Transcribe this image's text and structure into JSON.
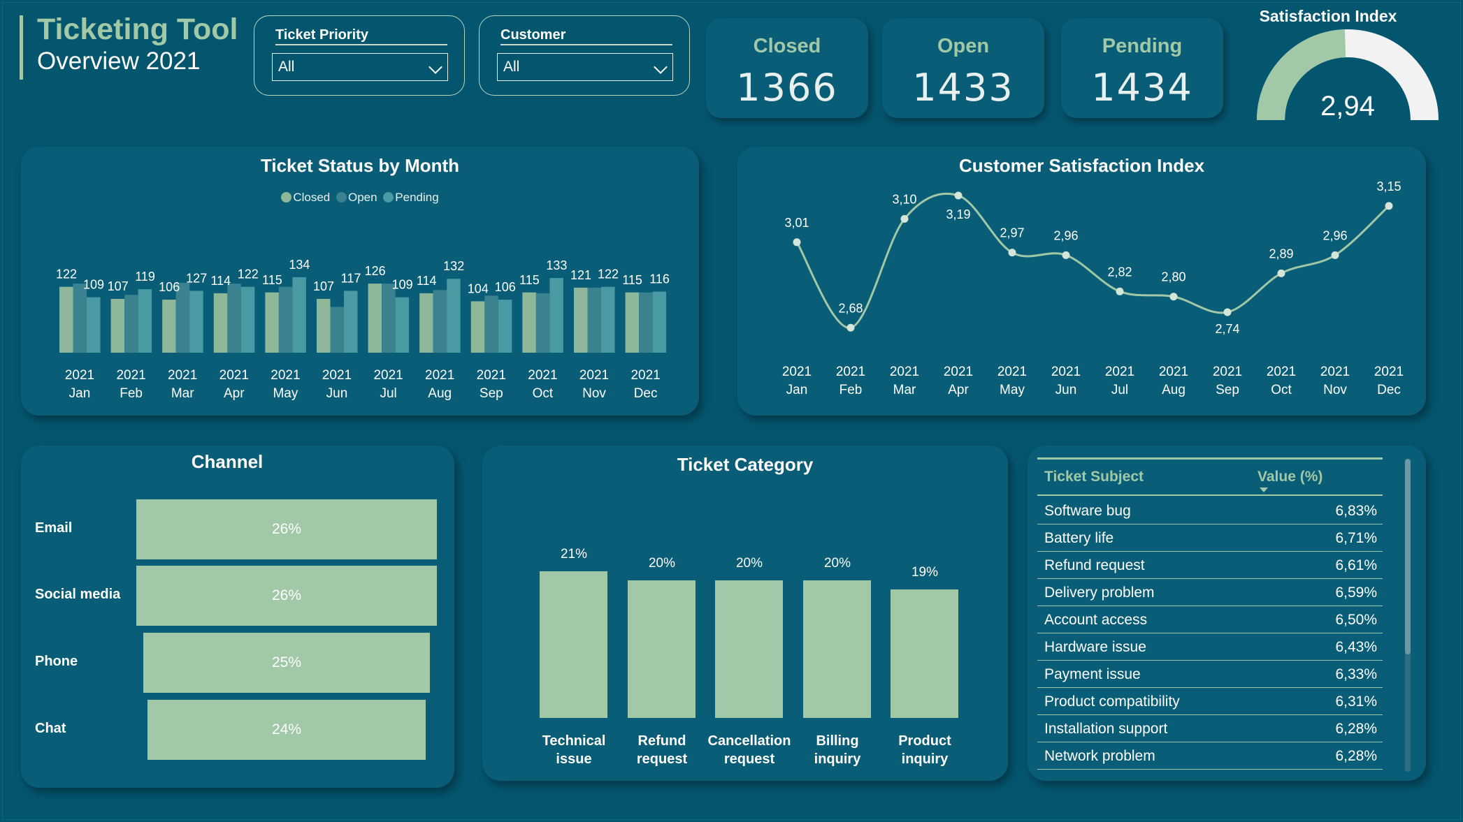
{
  "header": {
    "title": "Ticketing Tool",
    "subtitle": "Overview 2021"
  },
  "filters": {
    "priority": {
      "label": "Ticket Priority",
      "value": "All"
    },
    "customer": {
      "label": "Customer",
      "value": "All"
    }
  },
  "kpis": {
    "closed": {
      "label": "Closed",
      "value": "1366"
    },
    "open": {
      "label": "Open",
      "value": "1433"
    },
    "pending": {
      "label": "Pending",
      "value": "1434"
    }
  },
  "gauge": {
    "title": "Satisfaction Index",
    "value": "2,94",
    "fraction": 0.49
  },
  "colors": {
    "closed": "#8fb89b",
    "open": "#3a8290",
    "pending": "#4a9aa4",
    "accent": "#a1c9a7",
    "background": "#04566f"
  },
  "chart_data": [
    {
      "type": "bar",
      "title": "Ticket Status by Month",
      "categories": [
        "2021 Jan",
        "2021 Feb",
        "2021 Mar",
        "2021 Apr",
        "2021 May",
        "2021 Jun",
        "2021 Jul",
        "2021 Aug",
        "2021 Sep",
        "2021 Oct",
        "2021 Nov",
        "2021 Dec"
      ],
      "category_lines": [
        [
          "2021",
          "Jan"
        ],
        [
          "2021",
          "Feb"
        ],
        [
          "2021",
          "Mar"
        ],
        [
          "2021",
          "Apr"
        ],
        [
          "2021",
          "May"
        ],
        [
          "2021",
          "Jun"
        ],
        [
          "2021",
          "Jul"
        ],
        [
          "2021",
          "Aug"
        ],
        [
          "2021",
          "Sep"
        ],
        [
          "2021",
          "Oct"
        ],
        [
          "2021",
          "Nov"
        ],
        [
          "2021",
          "Dec"
        ]
      ],
      "legend": [
        "Closed",
        "Open",
        "Pending"
      ],
      "legend_position": "top",
      "series": [
        {
          "name": "Closed",
          "values": [
            122,
            107,
            106,
            114,
            115,
            107,
            126,
            114,
            104,
            115,
            121,
            115
          ]
        },
        {
          "name": "Open",
          "values": [
            null,
            null,
            127,
            null,
            null,
            null,
            null,
            null,
            null,
            null,
            null,
            null
          ]
        },
        {
          "name": "Pending",
          "values": [
            null,
            119,
            null,
            122,
            134,
            117,
            109,
            132,
            106,
            133,
            122,
            116
          ]
        }
      ],
      "top_labels": [
        [
          122,
          109
        ],
        [
          107,
          119
        ],
        [
          106,
          127
        ],
        [
          114,
          122
        ],
        [
          115,
          134
        ],
        [
          107,
          117
        ],
        [
          126,
          109
        ],
        [
          114,
          132
        ],
        [
          104,
          106
        ],
        [
          115,
          133
        ],
        [
          121,
          122
        ],
        [
          115,
          116
        ]
      ],
      "approx_bars": [
        [
          122,
          126,
          109
        ],
        [
          107,
          112,
          119
        ],
        [
          106,
          127,
          117
        ],
        [
          114,
          126,
          122
        ],
        [
          115,
          122,
          134
        ],
        [
          107,
          97,
          117
        ],
        [
          126,
          126,
          109
        ],
        [
          114,
          118,
          132
        ],
        [
          104,
          111,
          106
        ],
        [
          115,
          114,
          133
        ],
        [
          121,
          121,
          122
        ],
        [
          115,
          115,
          116
        ]
      ],
      "grid": false
    },
    {
      "type": "line",
      "title": "Customer Satisfaction Index",
      "categories": [
        "2021 Jan",
        "2021 Feb",
        "2021 Mar",
        "2021 Apr",
        "2021 May",
        "2021 Jun",
        "2021 Jul",
        "2021 Aug",
        "2021 Sep",
        "2021 Oct",
        "2021 Nov",
        "2021 Dec"
      ],
      "category_lines": [
        [
          "2021",
          "Jan"
        ],
        [
          "2021",
          "Feb"
        ],
        [
          "2021",
          "Mar"
        ],
        [
          "2021",
          "Apr"
        ],
        [
          "2021",
          "May"
        ],
        [
          "2021",
          "Jun"
        ],
        [
          "2021",
          "Jul"
        ],
        [
          "2021",
          "Aug"
        ],
        [
          "2021",
          "Sep"
        ],
        [
          "2021",
          "Oct"
        ],
        [
          "2021",
          "Nov"
        ],
        [
          "2021",
          "Dec"
        ]
      ],
      "values": [
        3.01,
        2.68,
        3.1,
        3.19,
        2.97,
        2.96,
        2.82,
        2.8,
        2.74,
        2.89,
        2.96,
        3.15
      ],
      "labels": [
        "3,01",
        "2,68",
        "3,10",
        "3,19",
        "2,97",
        "2,96",
        "2,82",
        "2,80",
        "2,74",
        "2,89",
        "2,96",
        "3,15"
      ],
      "grid": false
    },
    {
      "type": "bar",
      "orientation": "horizontal",
      "title": "Channel",
      "categories": [
        "Email",
        "Social media",
        "Phone",
        "Chat"
      ],
      "values": [
        26,
        26,
        25,
        24
      ],
      "labels": [
        "26%",
        "26%",
        "25%",
        "24%"
      ]
    },
    {
      "type": "bar",
      "title": "Ticket Category",
      "categories": [
        "Technical issue",
        "Refund request",
        "Cancellation request",
        "Billing inquiry",
        "Product inquiry"
      ],
      "category_lines": [
        [
          "Technical",
          "issue"
        ],
        [
          "Refund",
          "request"
        ],
        [
          "Cancellation",
          "request"
        ],
        [
          "Billing",
          "inquiry"
        ],
        [
          "Product",
          "inquiry"
        ]
      ],
      "values": [
        21,
        20,
        20,
        20,
        19
      ],
      "labels": [
        "21%",
        "20%",
        "20%",
        "20%",
        "19%"
      ]
    },
    {
      "type": "table",
      "columns": [
        "Ticket Subject",
        "Value (%)"
      ],
      "rows": [
        [
          "Software bug",
          "6,83%"
        ],
        [
          "Battery life",
          "6,71%"
        ],
        [
          "Refund request",
          "6,61%"
        ],
        [
          "Delivery problem",
          "6,59%"
        ],
        [
          "Account access",
          "6,50%"
        ],
        [
          "Hardware issue",
          "6,43%"
        ],
        [
          "Payment issue",
          "6,33%"
        ],
        [
          "Product compatibility",
          "6,31%"
        ],
        [
          "Installation support",
          "6,28%"
        ],
        [
          "Network problem",
          "6,28%"
        ]
      ]
    }
  ]
}
